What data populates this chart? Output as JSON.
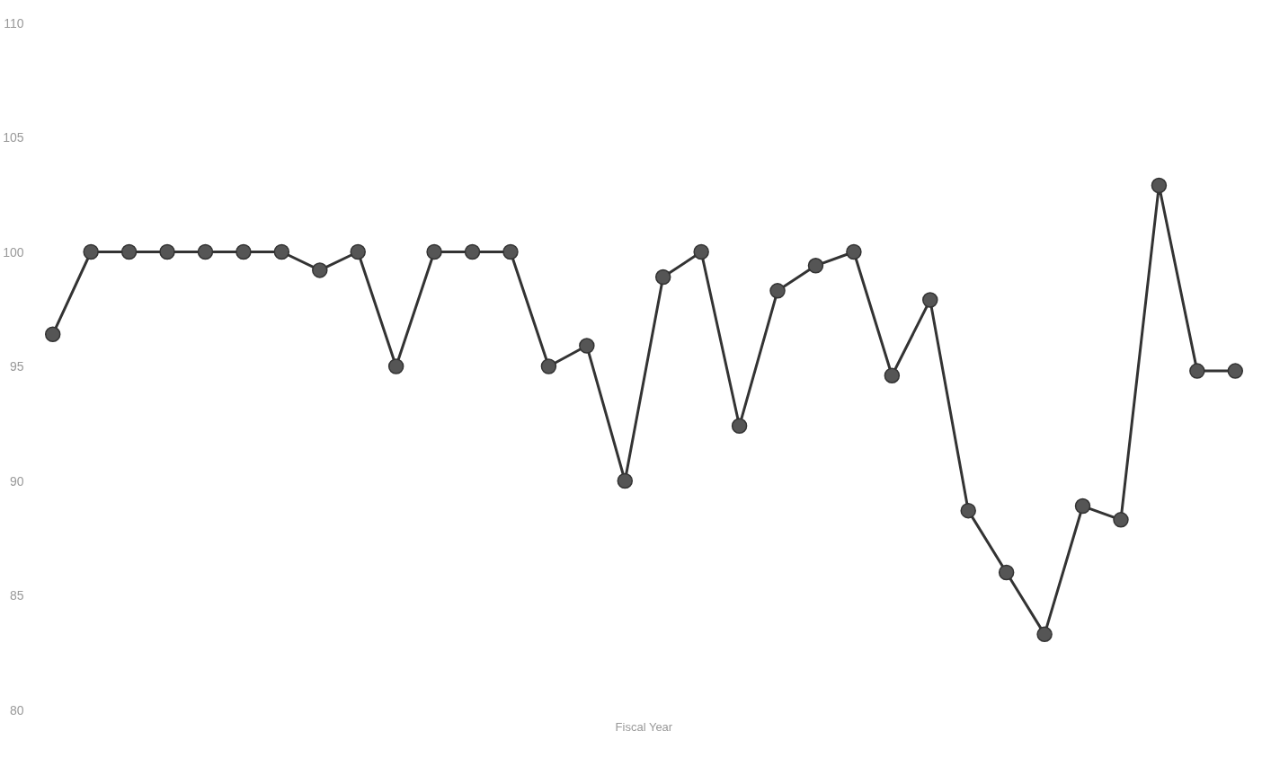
{
  "chart_data": {
    "type": "line",
    "xlabel": "Fiscal Year",
    "categories": [
      null,
      null,
      null,
      null,
      null,
      null,
      null,
      null,
      null,
      null,
      null,
      null,
      null,
      null,
      null,
      null,
      null,
      null,
      null,
      null,
      null,
      null,
      null,
      null,
      null,
      null,
      null,
      null,
      null,
      null,
      null,
      null
    ],
    "series": [
      {
        "color": "#333333",
        "values": [
          96.4,
          100,
          100,
          100,
          100,
          100,
          100,
          99.2,
          100,
          95,
          100,
          100,
          100,
          95,
          95.9,
          90,
          98.9,
          100,
          92.4,
          98.3,
          99.4,
          100,
          94.6,
          97.9,
          88.7,
          86,
          83.3,
          88.9,
          88.3,
          102.9,
          94.8,
          94.8
        ]
      }
    ],
    "ylim": [
      80,
      110
    ],
    "yticks": [
      80,
      85,
      90,
      95,
      100,
      105,
      110
    ],
    "grid": false,
    "marker": "circle",
    "line_style": "solid"
  }
}
